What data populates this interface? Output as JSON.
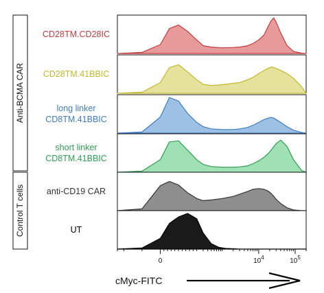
{
  "chart_data": {
    "type": "area",
    "xlabel": "cMyc-FITC",
    "x_scale": "biexponential",
    "x_ticks": [
      "0",
      "10^4",
      "10^5"
    ],
    "groups": [
      {
        "label": "Anti-BCMA CAR",
        "rows": [
          0,
          1,
          2,
          3
        ]
      },
      {
        "label": "Control T cells",
        "rows": [
          4,
          5
        ]
      }
    ],
    "series": [
      {
        "name": "CD28TM.CD28IC",
        "lines": [
          "CD28TM.CD28IC"
        ],
        "color": "#C23B3B",
        "fill": "#E8999A",
        "x": [
          -300,
          -100,
          0,
          50,
          100,
          150,
          200,
          300,
          500,
          1000,
          2000,
          3000,
          5000,
          7000,
          10000,
          14000,
          18000,
          22000,
          26000,
          30000,
          40000,
          60000,
          90000,
          150000,
          200000
        ],
        "y": [
          0,
          3,
          25,
          70,
          80,
          62,
          38,
          22,
          18,
          16,
          17,
          18,
          22,
          28,
          38,
          52,
          75,
          92,
          100,
          88,
          58,
          22,
          6,
          1,
          0
        ]
      },
      {
        "name": "CD28TM.41BBIC",
        "lines": [
          "CD28TM.41BBIC"
        ],
        "color": "#C2B82A",
        "fill": "#E4E29C",
        "x": [
          -300,
          -100,
          0,
          50,
          100,
          150,
          200,
          300,
          500,
          1000,
          2000,
          3000,
          5000,
          7000,
          10000,
          14000,
          18000,
          22000,
          26000,
          30000,
          40000,
          60000,
          90000,
          150000,
          200000
        ],
        "y": [
          0,
          3,
          30,
          72,
          80,
          60,
          38,
          25,
          22,
          24,
          28,
          30,
          38,
          45,
          55,
          64,
          70,
          74,
          72,
          70,
          64,
          55,
          42,
          18,
          0
        ]
      },
      {
        "name": "long linker CD8TM.41BBIC",
        "lines": [
          "long linker",
          "CD8TM.41BBIC"
        ],
        "color": "#3F7DBF",
        "fill": "#9DC0E4",
        "x": [
          -300,
          -100,
          0,
          50,
          100,
          150,
          200,
          300,
          500,
          1000,
          2000,
          3000,
          5000,
          7000,
          10000,
          14000,
          18000,
          22000,
          26000,
          30000,
          40000,
          60000,
          90000,
          150000,
          200000
        ],
        "y": [
          0,
          3,
          45,
          100,
          90,
          55,
          30,
          18,
          12,
          10,
          10,
          12,
          16,
          22,
          30,
          38,
          42,
          44,
          42,
          38,
          30,
          18,
          8,
          2,
          0
        ]
      },
      {
        "name": "short linker CD8TM.41BBIC",
        "lines": [
          "short linker",
          "CD8TM.41BBIC"
        ],
        "color": "#2E9E52",
        "fill": "#9FE0B4",
        "x": [
          -300,
          -100,
          0,
          50,
          100,
          150,
          200,
          300,
          500,
          1000,
          2000,
          3000,
          5000,
          7000,
          10000,
          14000,
          18000,
          22000,
          26000,
          30000,
          40000,
          60000,
          90000,
          150000,
          200000
        ],
        "y": [
          0,
          3,
          35,
          85,
          88,
          62,
          35,
          22,
          16,
          14,
          14,
          15,
          18,
          24,
          32,
          42,
          52,
          62,
          72,
          80,
          90,
          72,
          35,
          5,
          0
        ]
      },
      {
        "name": "anti-CD19 CAR",
        "lines": [
          "anti-CD19 CAR"
        ],
        "color": "#333333",
        "fill": "#8E8E8E",
        "x": [
          -300,
          -100,
          0,
          50,
          100,
          150,
          200,
          300,
          500,
          1000,
          2000,
          3000,
          5000,
          7000,
          10000,
          14000,
          18000,
          22000,
          26000,
          30000,
          40000,
          60000,
          90000,
          150000,
          200000
        ],
        "y": [
          0,
          5,
          70,
          82,
          72,
          50,
          34,
          28,
          30,
          34,
          40,
          46,
          54,
          60,
          62,
          60,
          55,
          48,
          40,
          32,
          20,
          8,
          2,
          0,
          0
        ]
      },
      {
        "name": "UT",
        "lines": [
          "UT"
        ],
        "color": "#000000",
        "fill": "#1A1A1A",
        "x": [
          -300,
          -100,
          0,
          50,
          100,
          150,
          200,
          300,
          500,
          800,
          1200,
          2000,
          3000,
          5000,
          10000,
          200000
        ],
        "y": [
          0,
          3,
          30,
          72,
          90,
          100,
          85,
          45,
          15,
          5,
          2,
          1,
          0,
          0,
          0,
          0
        ]
      }
    ]
  }
}
